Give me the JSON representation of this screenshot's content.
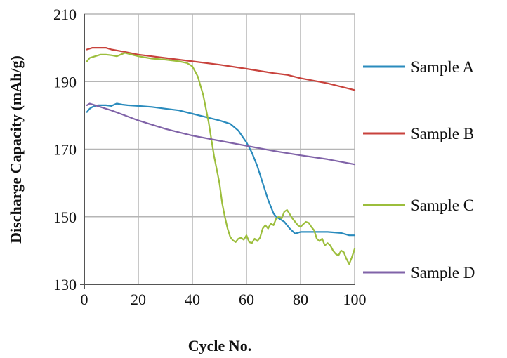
{
  "chart_data": {
    "type": "line",
    "title": "",
    "xlabel": "Cycle No.",
    "ylabel": "Discharge Capacity (mAh/g)",
    "xlim": [
      0,
      100
    ],
    "ylim": [
      130,
      210
    ],
    "xticks": [
      0,
      20,
      40,
      60,
      80,
      100
    ],
    "yticks": [
      130,
      150,
      170,
      190,
      210
    ],
    "grid": true,
    "legend_position": "right",
    "series": [
      {
        "name": "Sample A",
        "color": "#2a8bbd",
        "x": [
          1,
          2,
          3,
          5,
          8,
          10,
          12,
          14,
          16,
          20,
          25,
          30,
          35,
          40,
          45,
          50,
          54,
          57,
          60,
          62,
          64,
          66,
          68,
          70,
          71,
          72,
          74,
          76,
          78,
          80,
          85,
          90,
          95,
          98,
          100
        ],
        "y": [
          181,
          182,
          182.5,
          183,
          183,
          182.8,
          183.5,
          183.2,
          183,
          182.8,
          182.5,
          182,
          181.5,
          180.5,
          179.5,
          178.5,
          177.5,
          175.5,
          172,
          169,
          165,
          160,
          155,
          151,
          150,
          149.5,
          148.5,
          146.5,
          145,
          145.5,
          145.5,
          145.5,
          145.2,
          144.5,
          144.5
        ]
      },
      {
        "name": "Sample B",
        "color": "#c8423c",
        "x": [
          1,
          3,
          5,
          8,
          10,
          15,
          20,
          30,
          40,
          50,
          60,
          70,
          75,
          80,
          90,
          100
        ],
        "y": [
          199.5,
          200,
          200,
          200,
          199.5,
          198.8,
          198,
          197,
          196,
          195,
          193.8,
          192.5,
          192,
          191,
          189.5,
          187.5
        ]
      },
      {
        "name": "Sample C",
        "color": "#9cbe3c",
        "x": [
          1,
          2,
          4,
          6,
          8,
          10,
          12,
          15,
          20,
          25,
          30,
          35,
          38,
          40,
          42,
          44,
          46,
          48,
          50,
          51,
          52,
          53,
          54,
          55,
          56,
          57,
          58,
          59,
          60,
          61,
          62,
          63,
          64,
          65,
          66,
          67,
          68,
          69,
          70,
          71,
          72,
          73,
          74,
          75,
          76,
          77,
          78,
          79,
          80,
          81,
          82,
          83,
          84,
          85,
          86,
          87,
          88,
          89,
          90,
          91,
          92,
          93,
          94,
          95,
          96,
          97,
          98,
          99,
          100
        ],
        "y": [
          196,
          197,
          197.5,
          198,
          198,
          197.8,
          197.5,
          198.5,
          197.5,
          196.8,
          196.5,
          196,
          195.5,
          194.5,
          191.5,
          186,
          178,
          168,
          160,
          154,
          150,
          146.5,
          144,
          143,
          142.5,
          143.5,
          143.8,
          143.2,
          144.5,
          142.5,
          142.2,
          143.5,
          142.8,
          143.8,
          146.5,
          147.5,
          146.5,
          148,
          147.5,
          149.5,
          150,
          149.5,
          151.5,
          152,
          150.8,
          149.5,
          148.5,
          147.5,
          147,
          147.8,
          148.5,
          148.2,
          147,
          146,
          143.5,
          142.8,
          143.5,
          141.5,
          142.2,
          141.5,
          140,
          139,
          138.5,
          140,
          139.5,
          137.5,
          136,
          138,
          140.5
        ]
      },
      {
        "name": "Sample D",
        "color": "#8063a8",
        "x": [
          1,
          2,
          4,
          6,
          8,
          10,
          15,
          20,
          30,
          40,
          50,
          60,
          70,
          80,
          90,
          100
        ],
        "y": [
          183,
          183.5,
          183,
          182.5,
          182,
          181.5,
          180,
          178.5,
          176,
          174,
          172.5,
          171,
          169.5,
          168.2,
          167,
          165.5
        ]
      }
    ]
  }
}
